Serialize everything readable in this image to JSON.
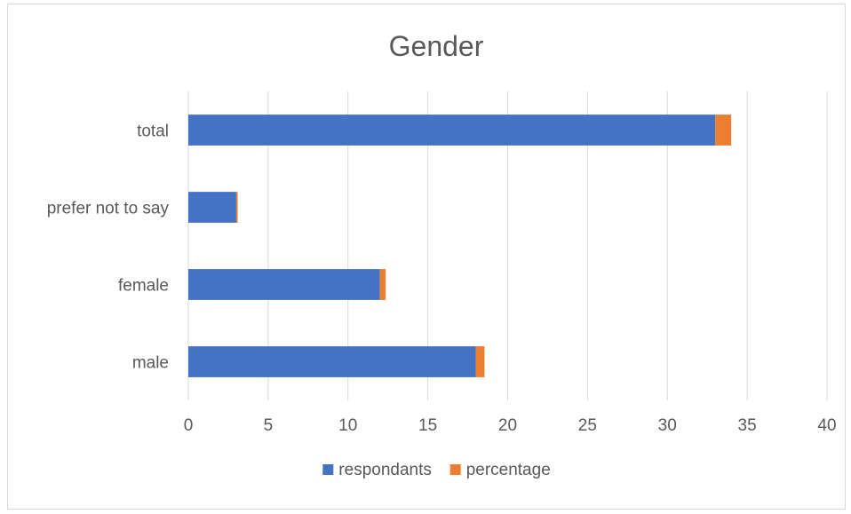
{
  "chart_data": {
    "type": "bar",
    "orientation": "horizontal",
    "stacked": true,
    "title": "Gender",
    "categories": [
      "male",
      "female",
      "prefer not to say",
      "total"
    ],
    "series": [
      {
        "name": "respondants",
        "color": "#4472c4",
        "values": [
          18,
          12,
          3,
          33
        ]
      },
      {
        "name": "percentage",
        "color": "#ed7d31",
        "values": [
          0.55,
          0.36,
          0.09,
          1
        ]
      }
    ],
    "xlim": [
      0,
      40
    ],
    "xticks": [
      "0",
      "5",
      "10",
      "15",
      "20",
      "25",
      "30",
      "35",
      "40"
    ],
    "grid": true,
    "legend": "bottom"
  }
}
